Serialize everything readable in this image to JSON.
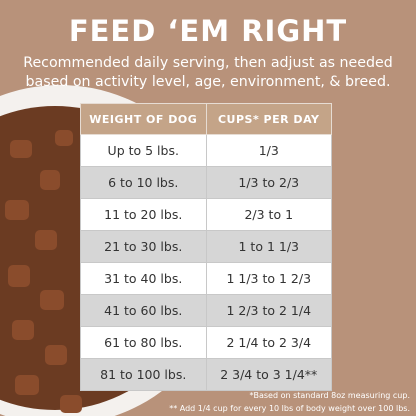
{
  "header": {
    "title": "FEED ‘EM RIGHT",
    "subtitle": [
      "Recommended daily serving, then adjust as needed",
      "based on activity level, age, environment, & breed."
    ]
  },
  "table": {
    "columns": [
      "WEIGHT OF DOG",
      "CUPS* PER DAY"
    ],
    "rows": [
      [
        "Up to 5 lbs.",
        "1/3"
      ],
      [
        "6 to 10 lbs.",
        "1/3 to 2/3"
      ],
      [
        "11 to 20 lbs.",
        "2/3 to 1"
      ],
      [
        "21 to 30 lbs.",
        "1 to 1 1/3"
      ],
      [
        "31 to 40 lbs.",
        "1 1/3 to 1 2/3"
      ],
      [
        "41 to 60 lbs.",
        "1 2/3 to 2 1/4"
      ],
      [
        "61 to 80 lbs.",
        "2 1/4 to 2 3/4"
      ],
      [
        "81 to 100 lbs.",
        "2 3/4 to 3 1/4**"
      ]
    ]
  },
  "footnotes": [
    "*Based on standard 8oz measuring cup.",
    "** Add 1/4 cup for every 10 lbs of body weight over 100 lbs."
  ]
}
